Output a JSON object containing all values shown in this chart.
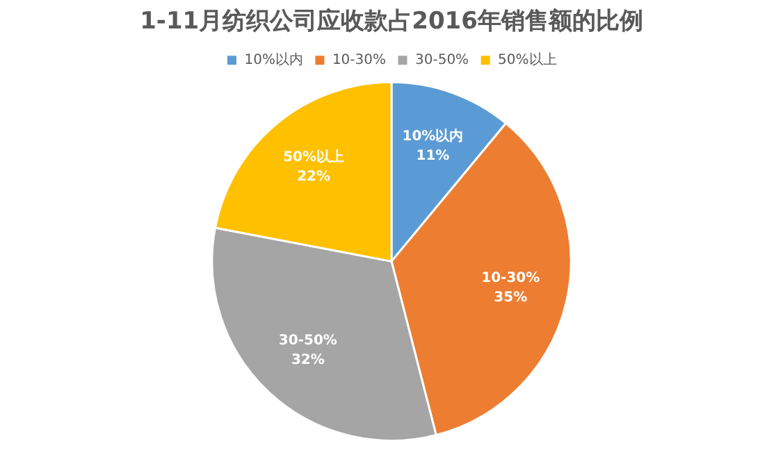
{
  "chart_data": {
    "type": "pie",
    "title": "1-11月纺织公司应收款占2016年销售额的比例",
    "categories": [
      "10%以内",
      "10-30%",
      "30-50%",
      "50%以上"
    ],
    "values": [
      11,
      35,
      32,
      22
    ],
    "colors": [
      "#5b9bd5",
      "#ed7d31",
      "#a5a5a5",
      "#ffc000"
    ],
    "value_labels": [
      "11%",
      "35%",
      "32%",
      "22%"
    ],
    "legend": "top"
  }
}
